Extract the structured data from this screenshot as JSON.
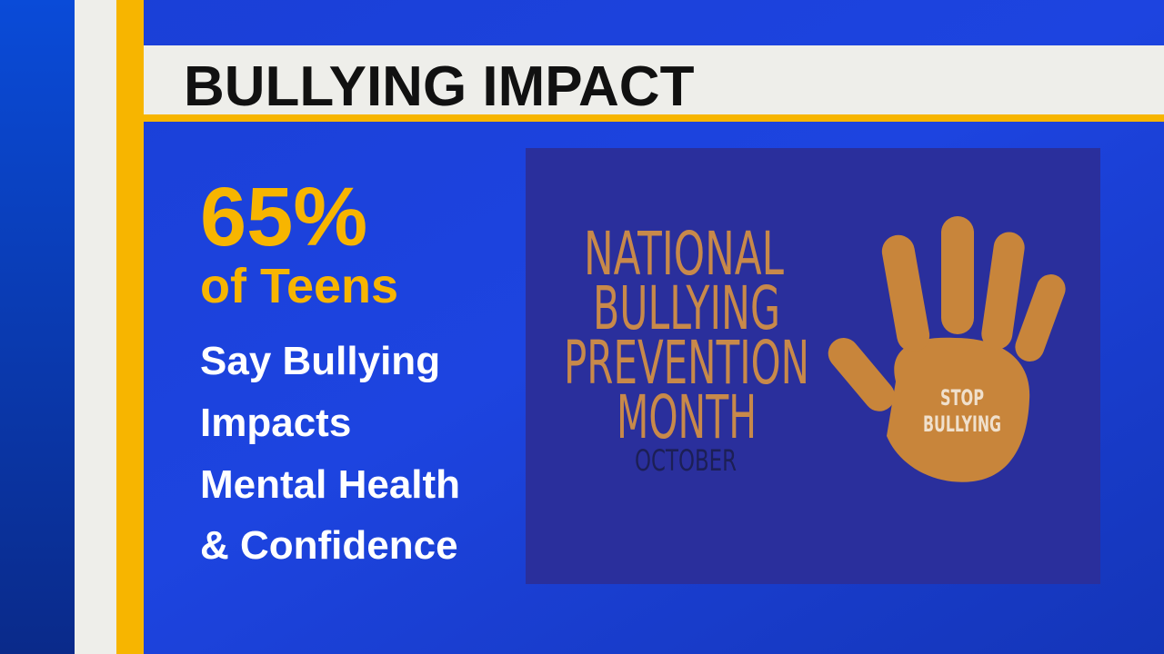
{
  "header": {
    "title": "BULLYING IMPACT"
  },
  "stat": {
    "value": "65%",
    "subject": "of Teens",
    "lines": [
      "Say Bullying",
      "Impacts",
      "Mental Health",
      "& Confidence"
    ]
  },
  "poster": {
    "lines": [
      "NATIONAL",
      "BULLYING",
      "PREVENTION",
      "MONTH"
    ],
    "month": "OCTOBER",
    "hand_text": [
      "STOP",
      "BULLYING"
    ]
  }
}
